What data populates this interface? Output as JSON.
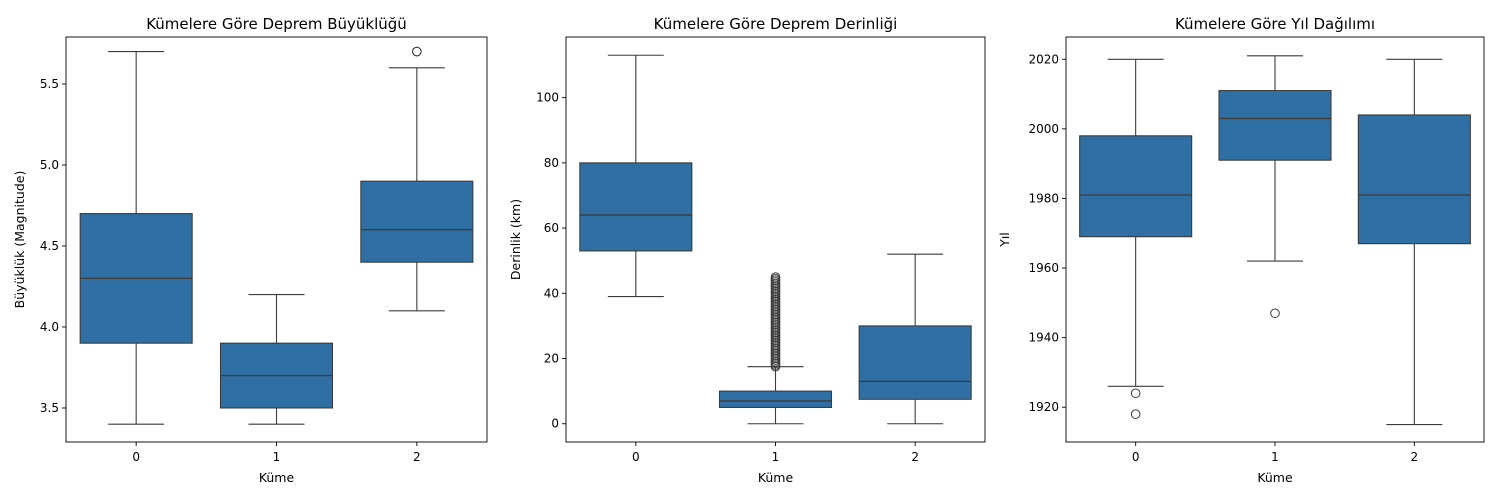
{
  "chart_data": [
    {
      "type": "box",
      "title": "Kümelere Göre Deprem Büyüklüğü",
      "xlabel": "Küme",
      "ylabel": "Büyüklük (Magnitude)",
      "ylim": [
        3.29,
        5.79
      ],
      "yticks": [
        3.5,
        4.0,
        4.5,
        5.0,
        5.5
      ],
      "ytick_labels": [
        "3.5",
        "4.0",
        "4.5",
        "5.0",
        "5.5"
      ],
      "categories": [
        "0",
        "1",
        "2"
      ],
      "color": "#2f6fa3",
      "boxes": [
        {
          "category": "0",
          "whislo": 3.4,
          "q1": 3.9,
          "med": 4.3,
          "q3": 4.7,
          "whishi": 5.7,
          "fliers": []
        },
        {
          "category": "1",
          "whislo": 3.4,
          "q1": 3.5,
          "med": 3.7,
          "q3": 3.9,
          "whishi": 4.2,
          "fliers": []
        },
        {
          "category": "2",
          "whislo": 4.1,
          "q1": 4.4,
          "med": 4.6,
          "q3": 4.9,
          "whishi": 5.6,
          "fliers": [
            5.7,
            5.7
          ]
        }
      ]
    },
    {
      "type": "box",
      "title": "Kümelere Göre Deprem Derinliği",
      "xlabel": "Küme",
      "ylabel": "Derinlik (km)",
      "ylim": [
        -5.6,
        118.6
      ],
      "yticks": [
        0,
        20,
        40,
        60,
        80,
        100
      ],
      "ytick_labels": [
        "0",
        "20",
        "40",
        "60",
        "80",
        "100"
      ],
      "categories": [
        "0",
        "1",
        "2"
      ],
      "color": "#2f6fa3",
      "boxes": [
        {
          "category": "0",
          "whislo": 39,
          "q1": 53,
          "med": 64,
          "q3": 80,
          "whishi": 113,
          "fliers": []
        },
        {
          "category": "1",
          "whislo": 0,
          "q1": 5,
          "med": 7,
          "q3": 10,
          "whishi": 17.5,
          "fliers": [
            17.5,
            18,
            18.5,
            19,
            19.5,
            20,
            20.5,
            21,
            21.5,
            22,
            22.5,
            23,
            23.5,
            24,
            24.5,
            25,
            25.5,
            26,
            26.5,
            27,
            27.5,
            28,
            28.5,
            29,
            29.5,
            30,
            30.5,
            31,
            31.5,
            32,
            32.5,
            33,
            33.5,
            34,
            34.5,
            35,
            35.5,
            36,
            36.5,
            37,
            37.5,
            38,
            38.5,
            39,
            39.5,
            40,
            40.5,
            41,
            41.5,
            42,
            42.5,
            43,
            43.5,
            44,
            44.5,
            45
          ]
        },
        {
          "category": "2",
          "whislo": 0,
          "q1": 7.5,
          "med": 13,
          "q3": 30,
          "whishi": 52,
          "fliers": []
        }
      ]
    },
    {
      "type": "box",
      "title": "Kümelere Göre Yıl Dağılımı",
      "xlabel": "Küme",
      "ylabel": "Yıl",
      "ylim": [
        1910,
        2026.4
      ],
      "yticks": [
        1920,
        1940,
        1960,
        1980,
        2000,
        2020
      ],
      "ytick_labels": [
        "1920",
        "1940",
        "1960",
        "1980",
        "2000",
        "2020"
      ],
      "categories": [
        "0",
        "1",
        "2"
      ],
      "color": "#2f6fa3",
      "boxes": [
        {
          "category": "0",
          "whislo": 1926,
          "q1": 1969,
          "med": 1981,
          "q3": 1998,
          "whishi": 2020,
          "fliers": [
            1924,
            1918
          ]
        },
        {
          "category": "1",
          "whislo": 1962,
          "q1": 1991,
          "med": 2003,
          "q3": 2011,
          "whishi": 2021,
          "fliers": [
            1947
          ]
        },
        {
          "category": "2",
          "whislo": 1915,
          "q1": 1967,
          "med": 1981,
          "q3": 2004,
          "whishi": 2020,
          "fliers": []
        }
      ]
    }
  ]
}
